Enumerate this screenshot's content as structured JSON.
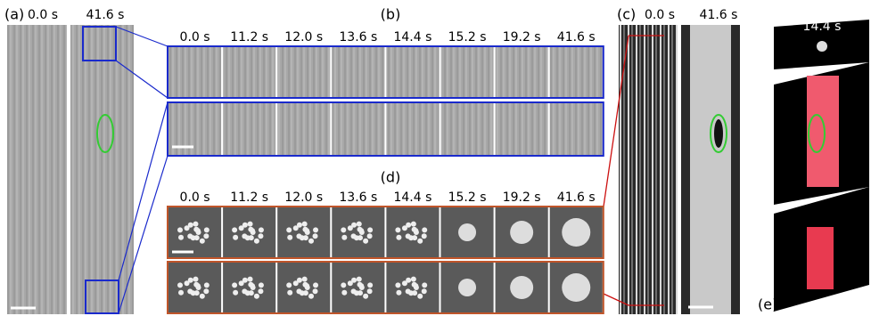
{
  "panels": {
    "a": {
      "label": "(a)",
      "times": [
        "0.0 s",
        "41.6 s"
      ]
    },
    "b": {
      "label": "(b)",
      "times": [
        "0.0 s",
        "11.2 s",
        "12.0 s",
        "13.6 s",
        "14.4 s",
        "15.2 s",
        "19.2 s",
        "41.6 s"
      ]
    },
    "c": {
      "label": "(c)",
      "times": [
        "0.0 s",
        "41.6 s"
      ]
    },
    "d": {
      "label": "(d)",
      "times": [
        "0.0 s",
        "11.2 s",
        "12.0 s",
        "13.6 s",
        "14.4 s",
        "15.2 s",
        "19.2 s",
        "41.6 s"
      ]
    },
    "e": {
      "label": "(e)",
      "time": "14.4 s"
    }
  }
}
